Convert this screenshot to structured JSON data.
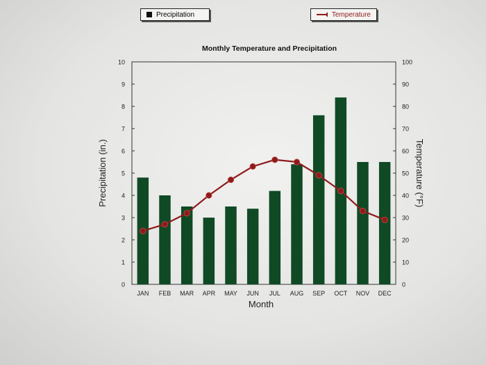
{
  "chart_data": {
    "type": "bar+line",
    "title": "Monthly Temperature and Precipitation",
    "categories": [
      "JAN",
      "FEB",
      "MAR",
      "APR",
      "MAY",
      "JUN",
      "JUL",
      "AUG",
      "SEP",
      "OCT",
      "NOV",
      "DEC"
    ],
    "xlabel": "Month",
    "ylabel_left": "Precipitation (in.)",
    "ylabel_right": "Temperature (°F)",
    "ylim_left": [
      0,
      10
    ],
    "ylim_right": [
      0,
      100
    ],
    "yticks_left": [
      "0",
      "1",
      "2",
      "3",
      "4",
      "5",
      "6",
      "7",
      "8",
      "9",
      "10"
    ],
    "yticks_right": [
      "0",
      "10",
      "20",
      "30",
      "40",
      "50",
      "60",
      "70",
      "80",
      "90",
      "100"
    ],
    "legend_placement": "top",
    "series": [
      {
        "name": "Precipitation",
        "kind": "bar",
        "axis": "left",
        "color": "#0f4a25",
        "values": [
          4.8,
          4.0,
          3.5,
          3.0,
          3.5,
          3.4,
          4.2,
          5.4,
          7.6,
          8.4,
          5.5,
          5.5
        ]
      },
      {
        "name": "Temperature",
        "kind": "line",
        "axis": "right",
        "color": "#8e1b1b",
        "values": [
          24,
          27,
          32,
          40,
          47,
          53,
          56,
          55,
          49,
          42,
          33,
          29
        ]
      }
    ]
  }
}
